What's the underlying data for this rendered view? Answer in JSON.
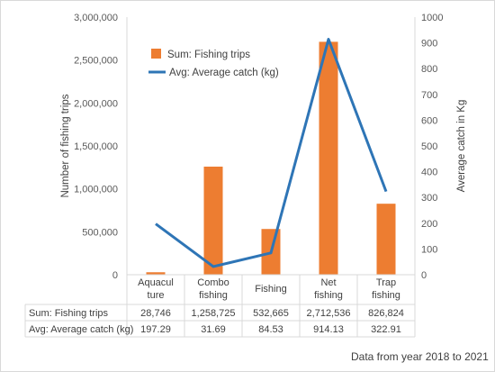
{
  "chart_data": {
    "type": "bar",
    "categories": [
      [
        "Aquacul",
        "ture"
      ],
      [
        "Combo",
        "fishing"
      ],
      [
        "Fishing"
      ],
      [
        "Net",
        "fishing"
      ],
      [
        "Trap",
        "fishing"
      ]
    ],
    "series": [
      {
        "name": "Sum: Fishing trips",
        "type": "bar",
        "axis": "left",
        "color": "#ED7D31",
        "values": [
          28746,
          1258725,
          532665,
          2712536,
          826824
        ],
        "labels": [
          "28,746",
          "1,258,725",
          "532,665",
          "2,712,536",
          "826,824"
        ]
      },
      {
        "name": "Avg: Average catch (kg)",
        "type": "line",
        "axis": "right",
        "color": "#2E75B6",
        "values": [
          197.29,
          31.69,
          84.53,
          914.13,
          322.91
        ],
        "labels": [
          "197.29",
          "31.69",
          "84.53",
          "914.13",
          "322.91"
        ]
      }
    ],
    "ylabel_left": "Number of fishing trips",
    "ylabel_right": "Average catch in Kg",
    "ylim_left": [
      0,
      3000000
    ],
    "ylim_right": [
      0,
      1000
    ],
    "yticks_left": [
      "0",
      "500,000",
      "1,000,000",
      "1,500,000",
      "2,000,000",
      "2,500,000",
      "3,000,000"
    ],
    "yticks_right": [
      "0",
      "100",
      "200",
      "300",
      "400",
      "500",
      "600",
      "700",
      "800",
      "900",
      "1000"
    ],
    "grid": false,
    "legend_position": "top-left",
    "data_table": true
  },
  "note": "Data from year 2018 to 2021"
}
